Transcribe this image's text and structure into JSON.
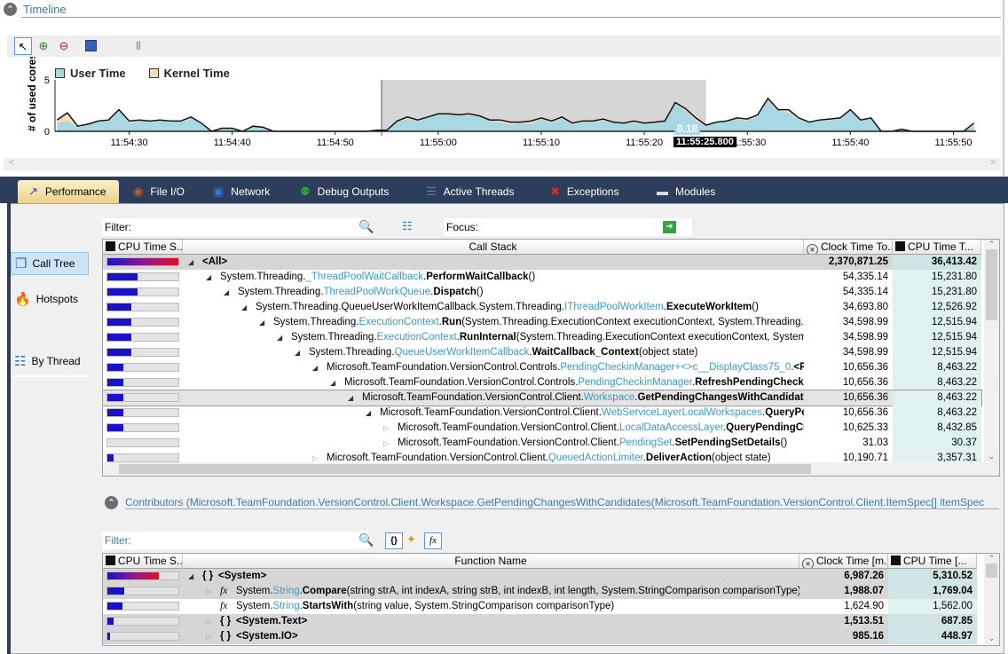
{
  "timeline": {
    "title": "Timeline",
    "toolbar": [
      {
        "icon": "pointer-icon"
      },
      {
        "icon": "zoom-in-icon"
      },
      {
        "icon": "zoom-out-icon"
      },
      {
        "icon": "save-icon"
      },
      {
        "icon": "pause-icon"
      }
    ],
    "cursor_value": "0.18",
    "cursor_time": "11:55:25.800"
  },
  "chart_data": {
    "type": "area",
    "ylabel": "# of used cores",
    "ylim": [
      0,
      5
    ],
    "yticks": [
      "0",
      "5"
    ],
    "xlim": [
      "11:54:22.8",
      "11:55:52.2"
    ],
    "xticks": [
      "11:54:30",
      "11:54:40",
      "11:54:50",
      "11:55:00",
      "11:55:10",
      "11:55:20",
      "11:55:30",
      "11:55:40",
      "11:55:50"
    ],
    "x_start": "11:54:23",
    "x_step_seconds": 1,
    "legend": "top-left",
    "selection": [
      "11:54:54.5",
      "11:55:26"
    ],
    "series": [
      {
        "name": "User Time",
        "color": "#a8d8e4",
        "values": [
          0.8,
          1.0,
          0.4,
          0.6,
          0.9,
          1.0,
          2.0,
          0.8,
          1.0,
          0.9,
          1.0,
          0.9,
          0.9,
          1.3,
          0.7,
          0,
          0.3,
          0.3,
          0,
          0.5,
          0.4,
          0,
          0,
          0,
          0,
          0,
          0,
          0,
          0,
          0,
          0,
          0.1,
          0.1,
          0.9,
          1.2,
          1.0,
          1.3,
          1.6,
          1.6,
          1.5,
          1.5,
          1.4,
          1.0,
          0.9,
          0.6,
          0.8,
          0.7,
          1.2,
          0.8,
          1.3,
          0.6,
          0.9,
          0.9,
          1.0,
          0.8,
          0.7,
          0.8,
          0.7,
          0.8,
          0.9,
          2.7,
          2.0,
          1.0,
          0.5,
          0.8,
          0.9,
          1.2,
          1.0,
          1.5,
          3.0,
          2.0,
          1.8,
          1.2,
          0.8,
          1.0,
          1.1,
          1.2,
          2.0,
          1.0,
          1.2,
          0,
          0,
          0.1,
          0,
          0,
          0,
          0,
          0,
          0,
          0.5
        ]
      },
      {
        "name": "Kernel Time",
        "color": "#f7dcb4",
        "values": [
          0.3,
          0.8,
          0.1,
          0.1,
          0.1,
          0.1,
          0.1,
          0.2,
          0.1,
          0.1,
          0.1,
          0.1,
          0.1,
          0.1,
          0.1,
          0,
          0,
          0,
          0,
          0,
          0,
          0,
          0,
          0,
          0,
          0,
          0,
          0,
          0,
          0,
          0,
          0,
          0,
          0.1,
          0.2,
          0.1,
          0.1,
          0.1,
          0.1,
          0.1,
          0.2,
          0.1,
          0.1,
          0.2,
          0.3,
          0.1,
          0.3,
          0.1,
          0.2,
          0.1,
          0.2,
          0.1,
          0.1,
          0.2,
          0.1,
          0.1,
          0.2,
          0.1,
          0.1,
          0.1,
          0.1,
          0.2,
          0.3,
          0.1,
          0.1,
          0.1,
          0.1,
          0.2,
          0.1,
          0.2,
          0.1,
          0.3,
          0.1,
          0.1,
          0.1,
          0.1,
          0.1,
          0.1,
          0.1,
          0.1,
          0,
          0,
          0.1,
          0,
          0,
          0,
          0,
          0,
          0,
          0.3
        ]
      }
    ]
  },
  "tabs": [
    {
      "label": "Performance",
      "icon": "performance-icon",
      "active": true
    },
    {
      "label": "File I/O",
      "icon": "file-io-icon"
    },
    {
      "label": "Network",
      "icon": "network-icon"
    },
    {
      "label": "Debug Outputs",
      "icon": "debug-outputs-icon"
    },
    {
      "label": "Active Threads",
      "icon": "active-threads-icon"
    },
    {
      "label": "Exceptions",
      "icon": "exceptions-icon"
    },
    {
      "label": "Modules",
      "icon": "modules-icon"
    }
  ],
  "sidebar": [
    {
      "label": "Call Tree",
      "icon": "call-tree-icon",
      "active": true
    },
    {
      "label": "Hotspots",
      "icon": "flame-icon"
    },
    {
      "label": "By Thread",
      "icon": "thread-icon"
    }
  ],
  "calltree": {
    "filter_label": "Filter:",
    "focus_label": "Focus:",
    "columns": [
      "CPU Time S...",
      "Call Stack",
      "Clock Time To...",
      "CPU Time T..."
    ],
    "selected_row": 9,
    "rows": [
      {
        "d": 0,
        "e": "open",
        "pre": "",
        "cls": "",
        "m": "<All>",
        "a": "",
        "clock": "2,370,871.25",
        "cpu": "36,413.42",
        "bar": 1.0,
        "b": true
      },
      {
        "d": 1,
        "e": "open",
        "pre": "System.Threading.",
        "cls": "_ThreadPoolWaitCallback",
        "m": "PerformWaitCallback",
        "a": "()",
        "clock": "54,335.14",
        "cpu": "15,231.80",
        "bar": 0.42
      },
      {
        "d": 2,
        "e": "open",
        "pre": "System.Threading.",
        "cls": "ThreadPoolWorkQueue",
        "m": "Dispatch",
        "a": "()",
        "clock": "54,335.14",
        "cpu": "15,231.80",
        "bar": 0.42
      },
      {
        "d": 3,
        "e": "open",
        "pre": "System.Threading.QueueUserWorkItemCallback.System.Threading.",
        "cls": "IThreadPoolWorkItem",
        "m": "ExecuteWorkItem",
        "a": "()",
        "clock": "34,693.80",
        "cpu": "12,526.92",
        "bar": 0.34
      },
      {
        "d": 4,
        "e": "open",
        "pre": "System.Threading.",
        "cls": "ExecutionContext",
        "m": "Run",
        "a": "(System.Threading.ExecutionContext executionContext, System.Threading.ContextCa",
        "clock": "34,598.99",
        "cpu": "12,515.94",
        "bar": 0.34
      },
      {
        "d": 5,
        "e": "open",
        "pre": "System.Threading.",
        "cls": "ExecutionContext",
        "m": "RunInternal",
        "a": "(System.Threading.ExecutionContext executionContext, System.Thread",
        "clock": "34,598.99",
        "cpu": "12,515.94",
        "bar": 0.34
      },
      {
        "d": 6,
        "e": "open",
        "pre": "System.Threading.",
        "cls": "QueueUserWorkItemCallback",
        "m": "WaitCallback_Context",
        "a": "(object state)",
        "clock": "34,598.99",
        "cpu": "12,515.94",
        "bar": 0.34
      },
      {
        "d": 7,
        "e": "open",
        "pre": "Microsoft.TeamFoundation.VersionControl.Controls.",
        "cls": "PendingCheckinManager+<>c__DisplayClass75_0",
        "m": "<Refresh",
        "a": "",
        "clock": "10,656.36",
        "cpu": "8,463.22",
        "bar": 0.23
      },
      {
        "d": 8,
        "e": "open",
        "pre": "Microsoft.TeamFoundation.VersionControl.Controls.",
        "cls": "PendingCheckinManager",
        "m": "RefreshPendingCheckinsIn",
        "a": "",
        "clock": "10,656.36",
        "cpu": "8,463.22",
        "bar": 0.23
      },
      {
        "d": 9,
        "e": "open",
        "pre": "Microsoft.TeamFoundation.VersionControl.Client.",
        "cls": "Workspace",
        "m": "GetPendingChangesWithCandidates",
        "a": "(",
        "clock": "10,656.36",
        "cpu": "8,463.22",
        "bar": 0.23
      },
      {
        "d": 10,
        "e": "open",
        "pre": "Microsoft.TeamFoundation.VersionControl.Client.",
        "cls": "WebServiceLayerLocalWorkspaces",
        "m": "QueryPendin",
        "a": "",
        "clock": "10,656.36",
        "cpu": "8,463.22",
        "bar": 0.23
      },
      {
        "d": 11,
        "e": "closed",
        "pre": "Microsoft.TeamFoundation.VersionControl.Client.",
        "cls": "LocalDataAccessLayer",
        "m": "QueryPendingChang",
        "a": "",
        "clock": "10,625.33",
        "cpu": "8,432.85",
        "bar": 0.23
      },
      {
        "d": 11,
        "e": "closed",
        "pre": "Microsoft.TeamFoundation.VersionControl.Client.",
        "cls": "PendingSet",
        "m": "SetPendingSetDetails",
        "a": "()",
        "clock": "31.03",
        "cpu": "30.37",
        "bar": 0
      },
      {
        "d": 7,
        "e": "closed",
        "pre": "Microsoft.TeamFoundation.VersionControl.Client.",
        "cls": "QueuedActionLimiter",
        "m": "DeliverAction",
        "a": "(object state)",
        "clock": "10,190.71",
        "cpu": "3,357.31",
        "bar": 0.09
      }
    ]
  },
  "contributors": {
    "title": "Contributors (Microsoft.TeamFoundation.VersionControl.Client.Workspace.GetPendingChangesWithCandidates(Microsoft.TeamFoundation.VersionControl.Client.ItemSpec[] itemSpec",
    "filter_label": "Filter:",
    "columns": [
      "CPU Time S...",
      "Function Name",
      "Clock Time [m...",
      "CPU Time [..."
    ],
    "rows": [
      {
        "d": 0,
        "e": "open",
        "kind": "ns",
        "pre": "",
        "cls": "",
        "m": "<System>",
        "a": "",
        "clock": "6,987.26",
        "cpu": "5,310.52",
        "bar": 0.72,
        "b": true
      },
      {
        "d": 1,
        "e": "closed",
        "kind": "fx",
        "pre": "System.",
        "cls": "String",
        "m": "Compare",
        "a": "(string strA, int indexA, string strB, int indexB, int length, System.StringComparison comparisonType)",
        "clock": "1,988.07",
        "cpu": "1,769.04",
        "bar": 0.24,
        "b": true
      },
      {
        "d": 1,
        "e": "",
        "kind": "fx",
        "pre": "System.",
        "cls": "String",
        "m": "StartsWith",
        "a": "(string value, System.StringComparison comparisonType)",
        "clock": "1,624.90",
        "cpu": "1,562.00",
        "bar": 0.21,
        "b": false
      },
      {
        "d": 1,
        "e": "closed",
        "kind": "ns",
        "pre": "",
        "cls": "",
        "m": "<System.Text>",
        "a": "",
        "clock": "1,513.51",
        "cpu": "687.85",
        "bar": 0.09,
        "b": true
      },
      {
        "d": 1,
        "e": "closed",
        "kind": "ns",
        "pre": "",
        "cls": "",
        "m": "<System.IO>",
        "a": "",
        "clock": "985.16",
        "cpu": "448.97",
        "bar": 0.04,
        "b": true
      }
    ]
  }
}
